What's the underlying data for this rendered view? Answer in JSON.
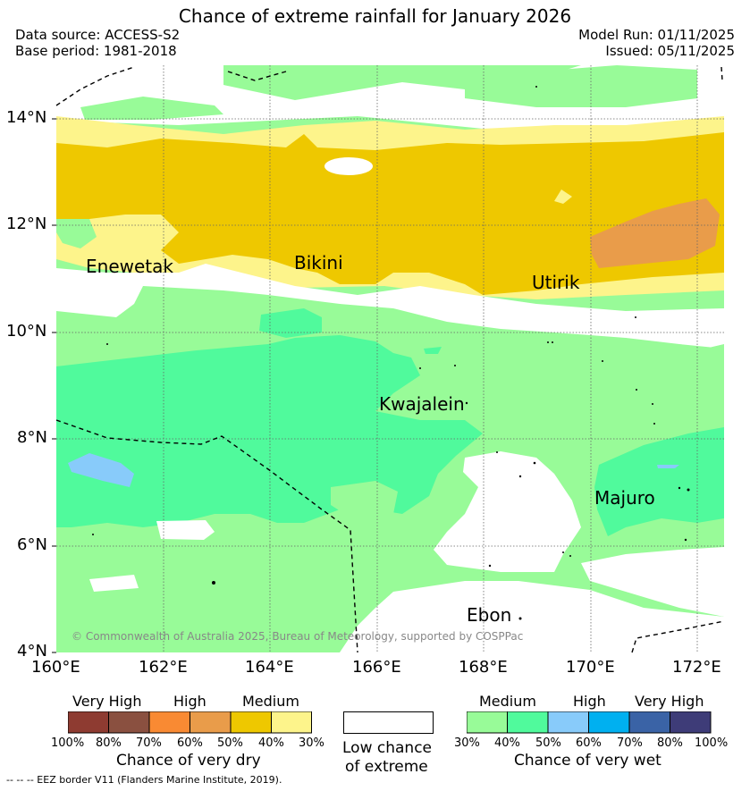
{
  "title": "Chance of extreme rainfall for January 2026",
  "meta": {
    "data_source": "Data source: ACCESS-S2",
    "base_period": "Base period: 1981-2018",
    "model_run": "Model Run: 01/11/2025",
    "issued": "Issued: 05/11/2025"
  },
  "axes": {
    "lat_labels": [
      "14°N",
      "12°N",
      "10°N",
      "8°N",
      "6°N",
      "4°N"
    ],
    "lon_labels": [
      "160°E",
      "162°E",
      "164°E",
      "166°E",
      "168°E",
      "170°E",
      "172°E"
    ]
  },
  "places": [
    "Enewetak",
    "Bikini",
    "Utirik",
    "Kwajalein",
    "Majuro",
    "Ebon"
  ],
  "copyright": "© Commonwealth of Australia 2025, Bureau of Meteorology, supported by COSPPac",
  "legend_dry": {
    "categories": [
      "Very High",
      "High",
      "Medium"
    ],
    "percents": [
      "100%",
      "80%",
      "70%",
      "60%",
      "50%",
      "40%",
      "30%"
    ],
    "colors": [
      "#8e3b31",
      "#8a5040",
      "#f98a33",
      "#e99c4a",
      "#eec800",
      "#fdf48b"
    ],
    "title": "Chance of very dry"
  },
  "legend_low": {
    "line1": "Low chance",
    "line2": "of extreme",
    "color": "#ffffff"
  },
  "legend_wet": {
    "categories": [
      "Medium",
      "High",
      "Very High"
    ],
    "percents": [
      "30%",
      "40%",
      "50%",
      "60%",
      "70%",
      "80%",
      "100%"
    ],
    "colors": [
      "#98fb98",
      "#50fa9c",
      "#88cbfa",
      "#00b0f0",
      "#3a63a6",
      "#3e3c78"
    ],
    "title": "Chance of very wet"
  },
  "footer": "--  --  -- EEZ border V11 (Flanders Marine Institute, 2019)."
}
